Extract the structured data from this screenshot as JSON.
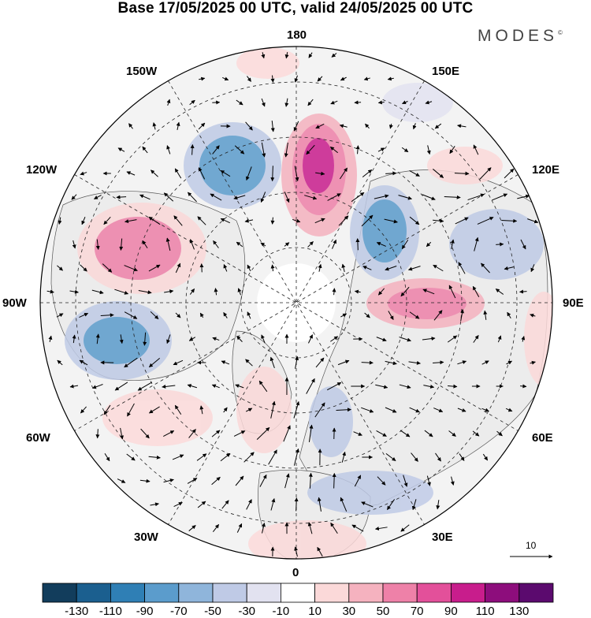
{
  "title": "Base 17/05/2025 00 UTC, valid 24/05/2025 00 UTC",
  "brand": "MODES",
  "brand_mark": "©",
  "longitude_labels": {
    "l180": "180",
    "l150w": "150W",
    "l150e": "150E",
    "l120w": "120W",
    "l120e": "120E",
    "l90w": "90W",
    "l90e": "90E",
    "l60w": "60W",
    "l60e": "60E",
    "l30w": "30W",
    "l30e": "30E",
    "l0": "0"
  },
  "vector_scale": {
    "value": "10"
  },
  "colorbar": {
    "labels": [
      "-130",
      "-110",
      "-90",
      "-70",
      "-50",
      "-30",
      "-10",
      "10",
      "30",
      "50",
      "70",
      "90",
      "110",
      "130"
    ],
    "colors": [
      "#123d5c",
      "#1b5f8f",
      "#2f7fb5",
      "#5b9ccc",
      "#8fb5db",
      "#bfcae6",
      "#e2e2f0",
      "#ffffff",
      "#fbd9d9",
      "#f5b2bf",
      "#ee81a8",
      "#e3509a",
      "#c81d8c",
      "#8d0d7c",
      "#5b0a6e"
    ]
  },
  "anomalies": [
    {
      "name": "anomaly-high-east-siberia",
      "value": 100
    },
    {
      "name": "anomaly-high-alaska-west",
      "value": 70
    },
    {
      "name": "anomaly-low-bering",
      "value": -80
    },
    {
      "name": "anomaly-low-canada-east",
      "value": -90
    },
    {
      "name": "anomaly-low-central-siberia",
      "value": -70
    },
    {
      "name": "anomaly-high-west-siberia",
      "value": 70
    },
    {
      "name": "anomaly-low-east-asia",
      "value": -40
    },
    {
      "name": "anomaly-high-east-asia-north",
      "value": 30
    },
    {
      "name": "anomaly-high-atlantic",
      "value": 40
    },
    {
      "name": "anomaly-high-scandinavia",
      "value": 40
    },
    {
      "name": "anomaly-low-europe",
      "value": -40
    },
    {
      "name": "anomaly-low-mediterranean",
      "value": -30
    }
  ]
}
